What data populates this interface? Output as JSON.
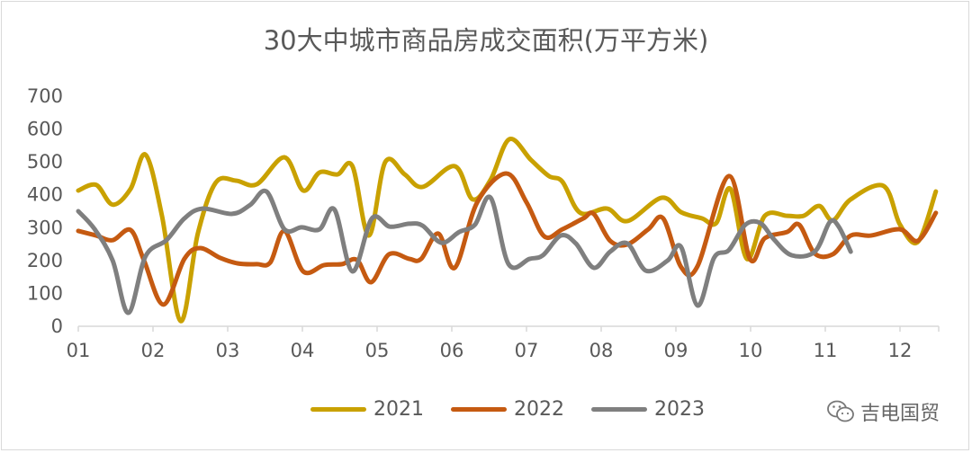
{
  "chart_data": {
    "type": "line",
    "title": "30大中城市商品房成交面积(万平方米)",
    "xlabel": "",
    "ylabel": "",
    "ylim": [
      0,
      700
    ],
    "yticks": [
      0,
      100,
      200,
      300,
      400,
      500,
      600,
      700
    ],
    "xlim": [
      1,
      12.5
    ],
    "xticks": [
      "01",
      "02",
      "03",
      "04",
      "05",
      "06",
      "07",
      "08",
      "09",
      "10",
      "11",
      "12"
    ],
    "grid": false,
    "legend_position": "bottom",
    "series": [
      {
        "name": "2021",
        "color": "#C9A100",
        "x": [
          1.0,
          1.24,
          1.46,
          1.7,
          1.9,
          2.12,
          2.37,
          2.6,
          2.84,
          3.11,
          3.39,
          3.76,
          4.01,
          4.23,
          4.47,
          4.67,
          4.89,
          5.11,
          5.37,
          5.61,
          6.04,
          6.28,
          6.52,
          6.77,
          7.06,
          7.3,
          7.48,
          7.72,
          8.08,
          8.35,
          8.81,
          9.07,
          9.35,
          9.54,
          9.73,
          9.95,
          10.19,
          10.49,
          10.71,
          10.92,
          11.1,
          11.34,
          11.78,
          12.0,
          12.24,
          12.48
        ],
        "y": [
          413,
          430,
          370,
          418,
          522,
          336,
          16,
          282,
          437,
          443,
          432,
          514,
          413,
          468,
          462,
          487,
          276,
          500,
          462,
          424,
          487,
          386,
          446,
          569,
          506,
          457,
          440,
          345,
          358,
          320,
          391,
          347,
          328,
          314,
          418,
          205,
          336,
          336,
          336,
          366,
          322,
          386,
          427,
          309,
          257,
          410
        ]
      },
      {
        "name": "2022",
        "color": "#C55A11",
        "x": [
          1.0,
          1.24,
          1.46,
          1.7,
          1.88,
          2.14,
          2.42,
          2.63,
          2.9,
          3.14,
          3.39,
          3.57,
          3.76,
          4.01,
          4.29,
          4.53,
          4.73,
          4.92,
          5.16,
          5.43,
          5.59,
          5.82,
          6.04,
          6.34,
          6.73,
          7.0,
          7.24,
          7.48,
          7.76,
          7.9,
          8.12,
          8.35,
          8.63,
          8.83,
          9.07,
          9.29,
          9.71,
          9.99,
          10.19,
          10.49,
          10.65,
          10.86,
          11.1,
          11.34,
          11.61,
          12.0,
          12.24,
          12.48
        ],
        "y": [
          290,
          276,
          262,
          293,
          200,
          66,
          205,
          238,
          208,
          191,
          189,
          194,
          290,
          167,
          186,
          189,
          202,
          134,
          219,
          205,
          205,
          282,
          178,
          377,
          465,
          377,
          273,
          295,
          328,
          342,
          260,
          249,
          295,
          328,
          180,
          183,
          457,
          205,
          268,
          287,
          309,
          221,
          219,
          276,
          276,
          295,
          260,
          345
        ]
      },
      {
        "name": "2023",
        "color": "#7F7F7F",
        "x": [
          1.0,
          1.22,
          1.46,
          1.67,
          1.9,
          2.18,
          2.42,
          2.66,
          3.06,
          3.3,
          3.52,
          3.76,
          3.99,
          4.23,
          4.43,
          4.67,
          4.93,
          5.17,
          5.43,
          5.61,
          5.86,
          6.1,
          6.31,
          6.52,
          6.76,
          7.04,
          7.22,
          7.46,
          7.66,
          7.9,
          8.12,
          8.35,
          8.6,
          8.89,
          9.07,
          9.29,
          9.51,
          9.71,
          9.93,
          10.13,
          10.31,
          10.55,
          10.86,
          11.06,
          11.18,
          11.34
        ],
        "y": [
          350,
          295,
          200,
          41,
          213,
          262,
          328,
          358,
          342,
          369,
          410,
          295,
          301,
          295,
          355,
          167,
          328,
          303,
          312,
          306,
          254,
          287,
          309,
          391,
          189,
          205,
          216,
          276,
          252,
          178,
          227,
          252,
          169,
          200,
          241,
          63,
          208,
          232,
          309,
          314,
          265,
          216,
          227,
          317,
          303,
          227
        ]
      }
    ]
  },
  "watermark": {
    "text": "吉电国贸",
    "icon": "wechat-icon"
  }
}
